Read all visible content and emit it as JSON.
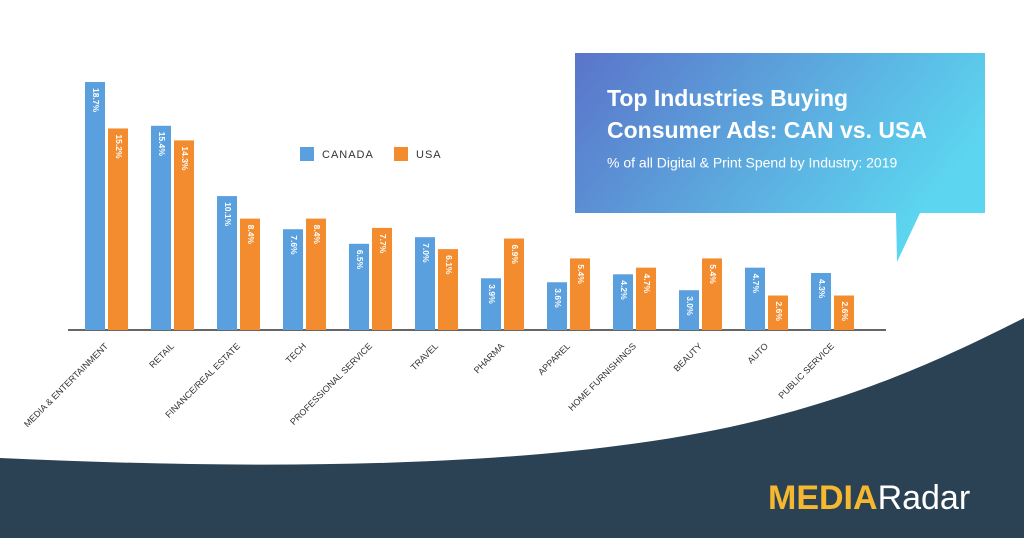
{
  "chart_data": {
    "type": "bar",
    "title": "Top Industries Buying Consumer Ads: CAN vs. USA",
    "subtitle": "% of all Digital & Print Spend by Industry: 2019",
    "categories": [
      "MEDIA & ENTERTAINMENT",
      "RETAIL",
      "FINANCE/REAL ESTATE",
      "TECH",
      "PROFESSIONAL SERVICE",
      "TRAVEL",
      "PHARMA",
      "APPAREL",
      "HOME FURNISHINGS",
      "BEAUTY",
      "AUTO",
      "PUBLIC SERVICE"
    ],
    "series": [
      {
        "name": "CANADA",
        "color": "#5a9fde",
        "values": [
          18.7,
          15.4,
          10.1,
          7.6,
          6.5,
          7.0,
          3.9,
          3.6,
          4.2,
          3.0,
          4.7,
          4.3
        ],
        "value_labels": [
          "18.7%",
          "15.4%",
          "10.1%",
          "7.6%",
          "6.5%",
          "7.0%",
          "3.9%",
          "3.6%",
          "4.2%",
          "3.0%",
          "4.7%",
          "4.3%"
        ]
      },
      {
        "name": "USA",
        "color": "#f28c2e",
        "values": [
          15.2,
          14.3,
          8.4,
          8.4,
          7.7,
          6.1,
          6.9,
          5.4,
          4.7,
          5.4,
          2.6,
          2.6
        ],
        "value_labels": [
          "15.2%",
          "14.3%",
          "8.4%",
          "8.4%",
          "7.7%",
          "6.1%",
          "6.9%",
          "5.4%",
          "4.7%",
          "5.4%",
          "2.6%",
          "2.6%"
        ]
      }
    ],
    "logo": {
      "first": "MEDIA",
      "second": "Radar"
    }
  }
}
